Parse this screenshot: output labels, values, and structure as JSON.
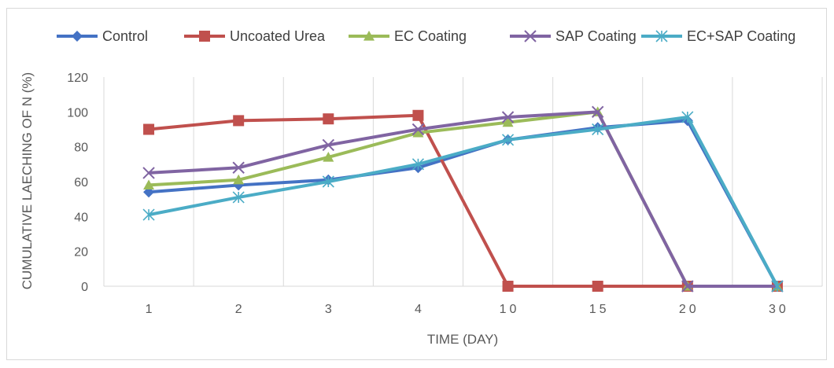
{
  "chart_data": {
    "type": "line",
    "title": "",
    "xlabel": "TIME (DAY)",
    "ylabel": "CUMULATIVE LAECHING OF N (%)",
    "categories": [
      "1",
      "2",
      "3",
      "4",
      "10",
      "15",
      "20",
      "30"
    ],
    "ylim": [
      0,
      120
    ],
    "yticks": [
      0,
      20,
      40,
      60,
      80,
      100,
      120
    ],
    "grid": "vertical",
    "legend": "top",
    "series": [
      {
        "name": "Control",
        "color": "#4472C4",
        "marker": "diamond",
        "values": [
          54,
          58,
          61,
          68,
          84,
          91,
          95,
          0
        ]
      },
      {
        "name": "Uncoated Urea",
        "color": "#C0504D",
        "marker": "square",
        "values": [
          90,
          95,
          96,
          98,
          0,
          0,
          0,
          0
        ]
      },
      {
        "name": "EC Coating",
        "color": "#9BBB59",
        "marker": "triangle",
        "values": [
          58,
          61,
          74,
          88,
          94,
          100,
          0,
          0
        ]
      },
      {
        "name": "SAP Coating",
        "color": "#8064A2",
        "marker": "x",
        "values": [
          65,
          68,
          81,
          90,
          97,
          100,
          0,
          0
        ]
      },
      {
        "name": "EC+SAP Coating",
        "color": "#4BACC6",
        "marker": "star",
        "values": [
          41,
          51,
          60,
          70,
          84,
          90,
          97,
          0
        ]
      }
    ]
  }
}
